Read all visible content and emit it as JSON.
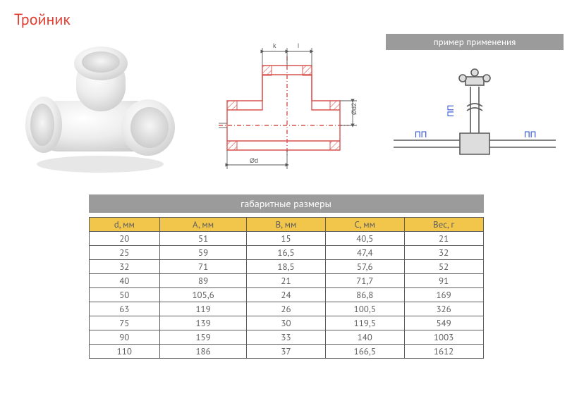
{
  "title": "Тройник",
  "example_banner": "пример применения",
  "size_banner": "габаритные размеры",
  "tech_labels": {
    "k": "k",
    "l": "l",
    "d": "Ød",
    "d2": "Ød2"
  },
  "example_labels": {
    "pp": "ПП"
  },
  "colors": {
    "title": "#e43b2f",
    "banner_bg": "#9b9b9b",
    "banner_text": "#ffffff",
    "header_bg": "#f2c64a",
    "border": "#5e5e5e",
    "text": "#5e5e5e",
    "tech_stroke": "#d9534f",
    "tech_hatch": "#d9534f",
    "dim": "#5a5a5a",
    "blue": "#2a4fd0"
  },
  "table": {
    "columns": [
      "d, мм",
      "A, мм",
      "B, мм",
      "C, мм",
      "Вес, г"
    ],
    "col_widths_pct": [
      18,
      22,
      20,
      20,
      20
    ],
    "rows": [
      [
        "20",
        "51",
        "15",
        "40,5",
        "21"
      ],
      [
        "25",
        "59",
        "16,5",
        "47,4",
        "32"
      ],
      [
        "32",
        "71",
        "18,5",
        "57,6",
        "52"
      ],
      [
        "40",
        "89",
        "21",
        "71,7",
        "91"
      ],
      [
        "50",
        "105,6",
        "24",
        "86,8",
        "169"
      ],
      [
        "63",
        "119",
        "26",
        "100,5",
        "326"
      ],
      [
        "75",
        "139",
        "30",
        "119,5",
        "549"
      ],
      [
        "90",
        "159",
        "33",
        "140",
        "1003"
      ],
      [
        "110",
        "186",
        "37",
        "166,5",
        "1612"
      ]
    ]
  }
}
